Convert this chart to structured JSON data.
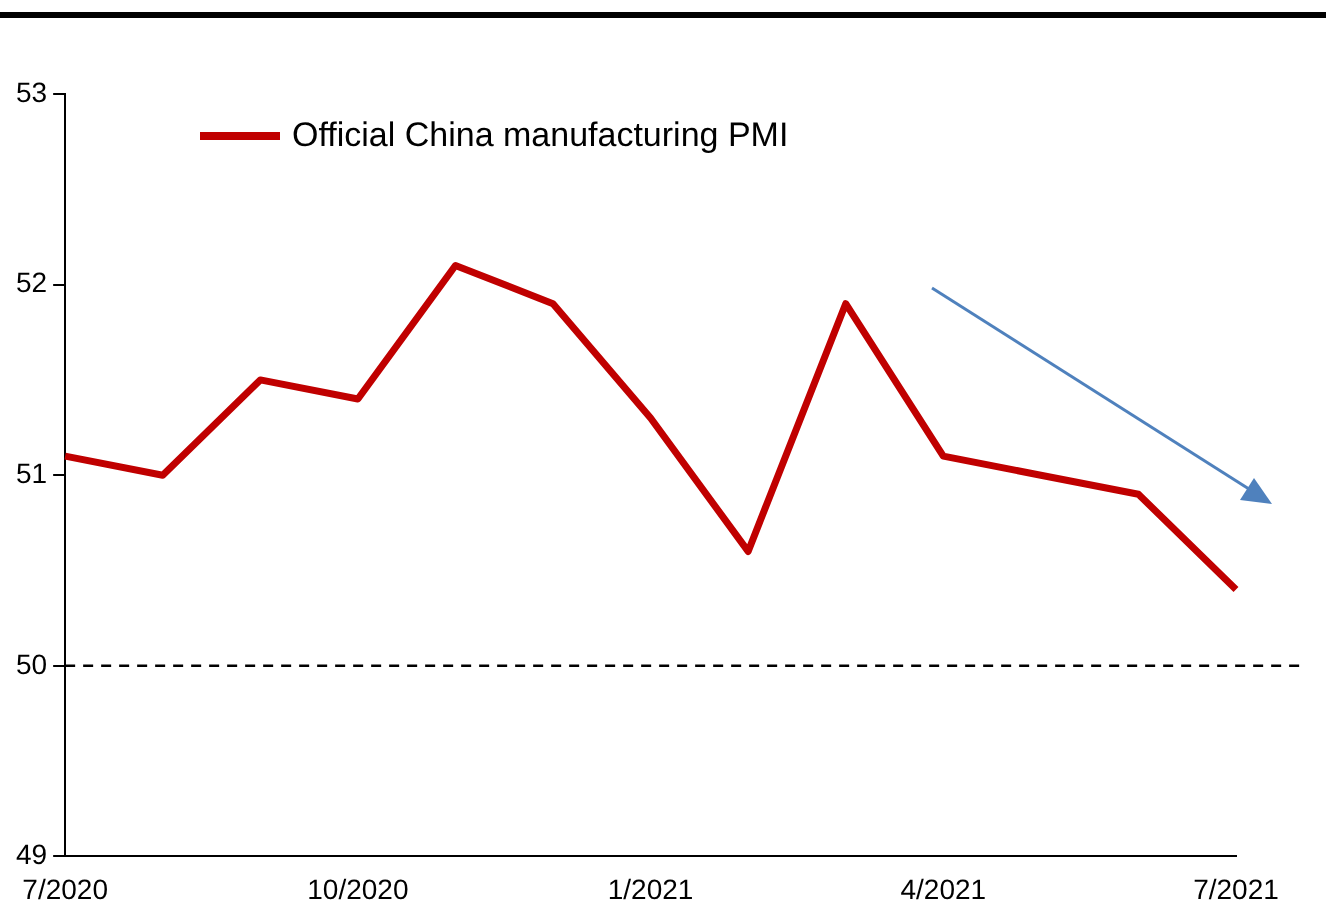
{
  "chart_data": {
    "type": "line",
    "categories": [
      "7/2020",
      null,
      null,
      "10/2020",
      null,
      null,
      "1/2021",
      null,
      null,
      "4/2021",
      null,
      null,
      "7/2021"
    ],
    "series": [
      {
        "name": "Official China manufacturing PMI",
        "color": "#c00000",
        "values": [
          51.1,
          51.0,
          51.5,
          51.4,
          52.1,
          51.9,
          51.3,
          50.6,
          51.9,
          51.1,
          51.0,
          50.9,
          50.4
        ]
      }
    ],
    "ylim": [
      49,
      53
    ],
    "yticks": [
      49,
      50,
      51,
      52,
      53
    ],
    "grid": false,
    "legend": "top left",
    "marker": "none",
    "line_style": "solid",
    "ref_lines": [
      {
        "axis": "y",
        "value": 50,
        "color": "#000000",
        "line_style": "dashed"
      }
    ]
  }
}
